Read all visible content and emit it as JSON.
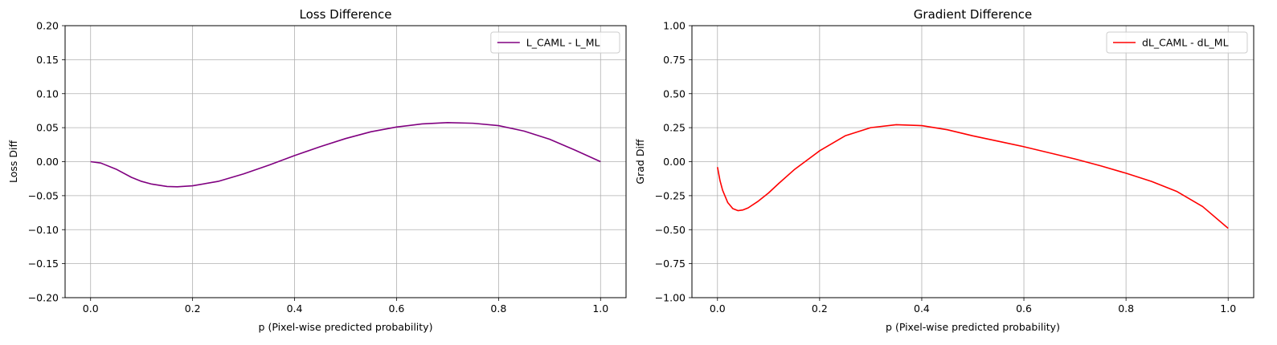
{
  "chart_data": [
    {
      "type": "line",
      "title": "Loss Difference",
      "xlabel": "p (Pixel-wise predicted probability)",
      "ylabel": "Loss Diff",
      "xlim": [
        -0.05,
        1.05
      ],
      "ylim": [
        -0.2,
        0.2
      ],
      "xticks": [
        0.0,
        0.2,
        0.4,
        0.6,
        0.8,
        1.0
      ],
      "xtick_labels": [
        "0.0",
        "0.2",
        "0.4",
        "0.6",
        "0.8",
        "1.0"
      ],
      "yticks": [
        -0.2,
        -0.15,
        -0.1,
        -0.05,
        0.0,
        0.05,
        0.1,
        0.15,
        0.2
      ],
      "ytick_labels": [
        "−0.20",
        "−0.15",
        "−0.10",
        "−0.05",
        "0.00",
        "0.05",
        "0.10",
        "0.15",
        "0.20"
      ],
      "grid": true,
      "legend_position": "top-right",
      "series": [
        {
          "name": "L_CAML - L_ML",
          "color": "#800080",
          "x": [
            0.0,
            0.02,
            0.05,
            0.08,
            0.1,
            0.12,
            0.15,
            0.17,
            0.2,
            0.25,
            0.3,
            0.35,
            0.4,
            0.45,
            0.5,
            0.55,
            0.6,
            0.65,
            0.7,
            0.75,
            0.8,
            0.85,
            0.9,
            0.95,
            1.0
          ],
          "y": [
            0.0,
            -0.002,
            -0.011,
            -0.023,
            -0.029,
            -0.033,
            -0.0365,
            -0.037,
            -0.0355,
            -0.029,
            -0.018,
            -0.005,
            0.009,
            0.022,
            0.034,
            0.044,
            0.051,
            0.0555,
            0.0575,
            0.0565,
            0.053,
            0.045,
            0.033,
            0.017,
            0.0
          ]
        }
      ]
    },
    {
      "type": "line",
      "title": "Gradient Difference",
      "xlabel": "p (Pixel-wise predicted probability)",
      "ylabel": "Grad Diff",
      "xlim": [
        -0.05,
        1.05
      ],
      "ylim": [
        -1.0,
        1.0
      ],
      "xticks": [
        0.0,
        0.2,
        0.4,
        0.6,
        0.8,
        1.0
      ],
      "xtick_labels": [
        "0.0",
        "0.2",
        "0.4",
        "0.6",
        "0.8",
        "1.0"
      ],
      "yticks": [
        -1.0,
        -0.75,
        -0.5,
        -0.25,
        0.0,
        0.25,
        0.5,
        0.75,
        1.0
      ],
      "ytick_labels": [
        "−1.00",
        "−0.75",
        "−0.50",
        "−0.25",
        "0.00",
        "0.25",
        "0.50",
        "0.75",
        "1.00"
      ],
      "grid": true,
      "legend_position": "top-right",
      "series": [
        {
          "name": "dL_CAML - dL_ML",
          "color": "#ff0000",
          "x": [
            0.0,
            0.005,
            0.01,
            0.02,
            0.03,
            0.04,
            0.05,
            0.06,
            0.08,
            0.1,
            0.12,
            0.15,
            0.2,
            0.25,
            0.3,
            0.35,
            0.4,
            0.45,
            0.5,
            0.55,
            0.6,
            0.65,
            0.7,
            0.75,
            0.8,
            0.85,
            0.9,
            0.95,
            1.0
          ],
          "y": [
            -0.04,
            -0.14,
            -0.21,
            -0.3,
            -0.345,
            -0.36,
            -0.355,
            -0.34,
            -0.29,
            -0.23,
            -0.16,
            -0.06,
            0.08,
            0.19,
            0.25,
            0.272,
            0.265,
            0.235,
            0.19,
            0.15,
            0.11,
            0.065,
            0.02,
            -0.03,
            -0.085,
            -0.145,
            -0.22,
            -0.33,
            -0.49
          ]
        }
      ]
    }
  ]
}
